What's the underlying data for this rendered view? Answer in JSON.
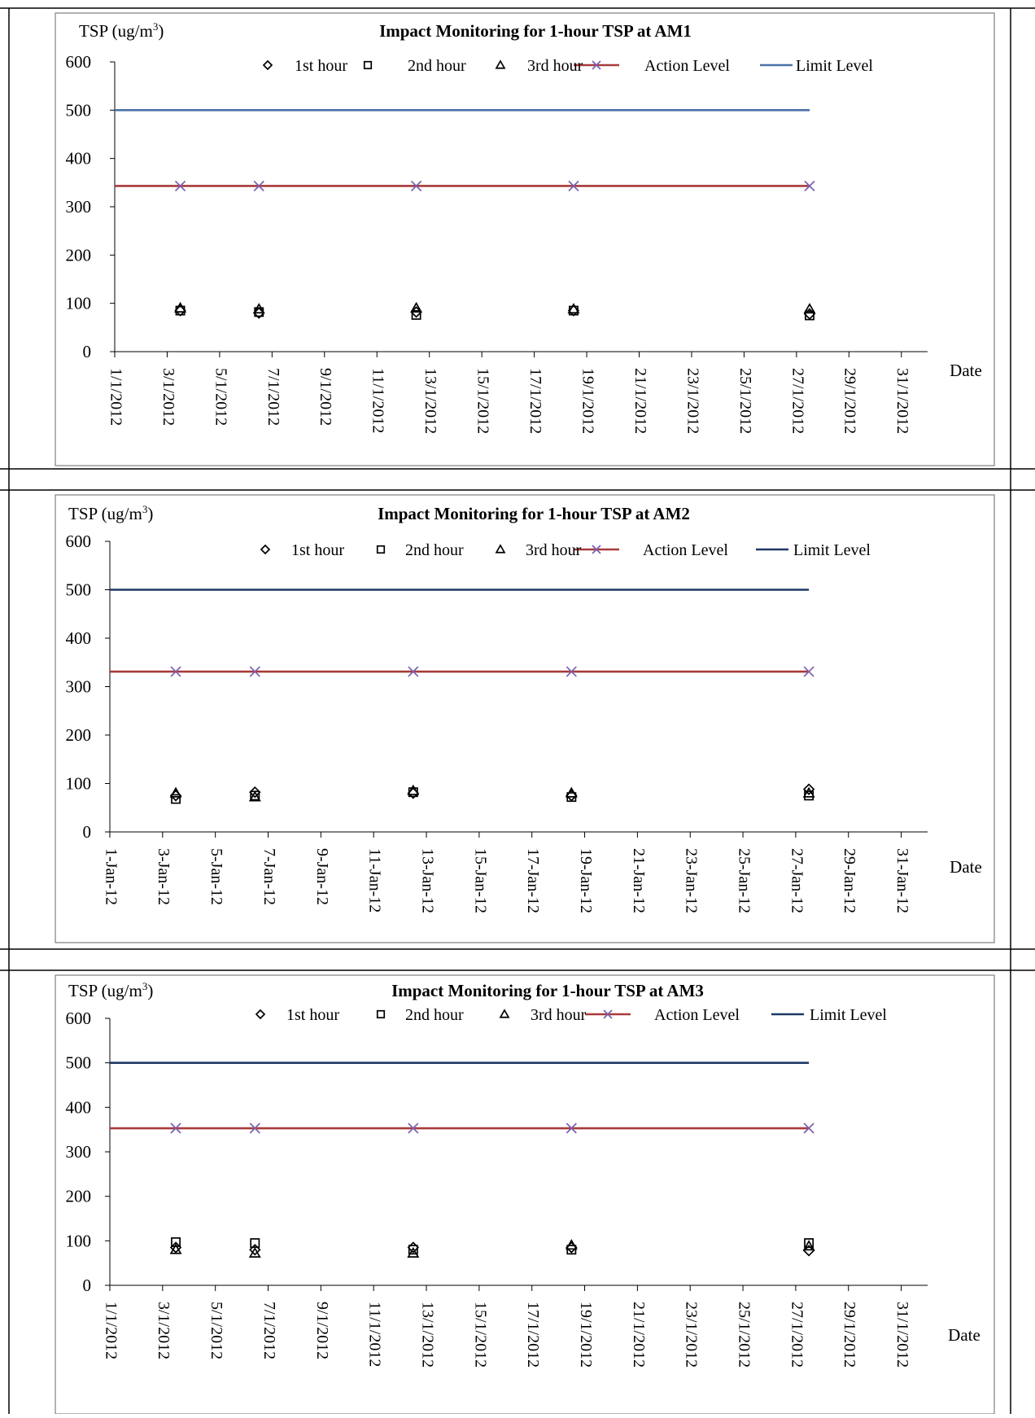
{
  "colors": {
    "limit_am1": "#4a72a8",
    "limit_am2": "#1f3864",
    "limit_am3": "#1f3864",
    "action": "#a83a3a",
    "action_marker": "#7c5fb0",
    "marker": "#000000",
    "border": "#000000",
    "panel_border": "#7f7f7f"
  },
  "chart_data": [
    {
      "type": "scatter",
      "title": "Impact Monitoring for 1-hour TSP at AM1",
      "ylabel_text": "TSP (ug/m",
      "ylabel_sup": "3",
      "ylabel_close": ")",
      "xlabel": "Date",
      "ylim": [
        0,
        600
      ],
      "yticks": [
        0,
        100,
        200,
        300,
        400,
        500,
        600
      ],
      "xlim": [
        1,
        32
      ],
      "xtick_positions": [
        1,
        3,
        5,
        7,
        9,
        11,
        13,
        15,
        17,
        19,
        21,
        23,
        25,
        27,
        29,
        31
      ],
      "xtick_labels": [
        "1/1/2012",
        "3/1/2012",
        "5/1/2012",
        "7/1/2012",
        "9/1/2012",
        "11/1/2012",
        "13/1/2012",
        "15/1/2012",
        "17/1/2012",
        "19/1/2012",
        "21/1/2012",
        "23/1/2012",
        "25/1/2012",
        "27/1/2012",
        "29/1/2012",
        "31/1/2012"
      ],
      "legend": [
        "1st hour",
        "2nd hour",
        "3rd hour",
        "Action Level",
        "Limit Level"
      ],
      "x": [
        3.5,
        6.5,
        12.5,
        18.5,
        27.5
      ],
      "series": [
        {
          "name": "1st hour",
          "marker": "diamond",
          "values": [
            85,
            80,
            82,
            85,
            78
          ]
        },
        {
          "name": "2nd hour",
          "marker": "square",
          "values": [
            85,
            82,
            76,
            85,
            75
          ]
        },
        {
          "name": "3rd hour",
          "marker": "triangle",
          "values": [
            90,
            88,
            90,
            88,
            88
          ]
        }
      ],
      "action_level": 343,
      "limit_level": 500,
      "line_x_start": 1,
      "line_x_end": 27.5,
      "limit_color_key": "limit_am1"
    },
    {
      "type": "scatter",
      "title": "Impact Monitoring for 1-hour TSP at AM2",
      "ylabel_text": "TSP (ug/m",
      "ylabel_sup": "3",
      "ylabel_close": ")",
      "xlabel": "Date",
      "ylim": [
        0,
        600
      ],
      "yticks": [
        0,
        100,
        200,
        300,
        400,
        500,
        600
      ],
      "xlim": [
        1,
        32
      ],
      "xtick_positions": [
        1,
        3,
        5,
        7,
        9,
        11,
        13,
        15,
        17,
        19,
        21,
        23,
        25,
        27,
        29,
        31
      ],
      "xtick_labels": [
        "1-Jan-12",
        "3-Jan-12",
        "5-Jan-12",
        "7-Jan-12",
        "9-Jan-12",
        "11-Jan-12",
        "13-Jan-12",
        "15-Jan-12",
        "17-Jan-12",
        "19-Jan-12",
        "21-Jan-12",
        "23-Jan-12",
        "25-Jan-12",
        "27-Jan-12",
        "29-Jan-12",
        "31-Jan-12"
      ],
      "legend": [
        "1st hour",
        "2nd hour",
        "3rd hour",
        "Action Level",
        "Limit Level"
      ],
      "x": [
        3.5,
        6.5,
        12.5,
        18.5,
        27.5
      ],
      "series": [
        {
          "name": "1st hour",
          "marker": "diamond",
          "values": [
            75,
            82,
            80,
            75,
            88
          ]
        },
        {
          "name": "2nd hour",
          "marker": "square",
          "values": [
            68,
            75,
            82,
            72,
            75
          ]
        },
        {
          "name": "3rd hour",
          "marker": "triangle",
          "values": [
            80,
            72,
            85,
            80,
            80
          ]
        }
      ],
      "action_level": 331,
      "limit_level": 500,
      "line_x_start": 1,
      "line_x_end": 27.5,
      "limit_color_key": "limit_am2"
    },
    {
      "type": "scatter",
      "title": "Impact Monitoring for 1-hour TSP at AM3",
      "ylabel_text": "TSP (ug/m",
      "ylabel_sup": "3",
      "ylabel_close": ")",
      "xlabel": "Date",
      "ylim": [
        0,
        600
      ],
      "yticks": [
        0,
        100,
        200,
        300,
        400,
        500,
        600
      ],
      "xlim": [
        1,
        32
      ],
      "xtick_positions": [
        1,
        3,
        5,
        7,
        9,
        11,
        13,
        15,
        17,
        19,
        21,
        23,
        25,
        27,
        29,
        31
      ],
      "xtick_labels": [
        "1/1/2012",
        "3/1/2012",
        "5/1/2012",
        "7/1/2012",
        "9/1/2012",
        "11/1/2012",
        "13/1/2012",
        "15/1/2012",
        "17/1/2012",
        "19/1/2012",
        "21/1/2012",
        "23/1/2012",
        "25/1/2012",
        "27/1/2012",
        "29/1/2012",
        "31/1/2012"
      ],
      "legend": [
        "1st hour",
        "2nd hour",
        "3rd hour",
        "Action Level",
        "Limit Level"
      ],
      "x": [
        3.5,
        6.5,
        12.5,
        18.5,
        27.5
      ],
      "series": [
        {
          "name": "1st hour",
          "marker": "diamond",
          "values": [
            85,
            80,
            85,
            85,
            78
          ]
        },
        {
          "name": "2nd hour",
          "marker": "square",
          "values": [
            97,
            95,
            80,
            80,
            95
          ]
        },
        {
          "name": "3rd hour",
          "marker": "triangle",
          "values": [
            80,
            72,
            72,
            90,
            88
          ]
        }
      ],
      "action_level": 353,
      "limit_level": 500,
      "line_x_start": 1,
      "line_x_end": 27.5,
      "limit_color_key": "limit_am3"
    }
  ]
}
